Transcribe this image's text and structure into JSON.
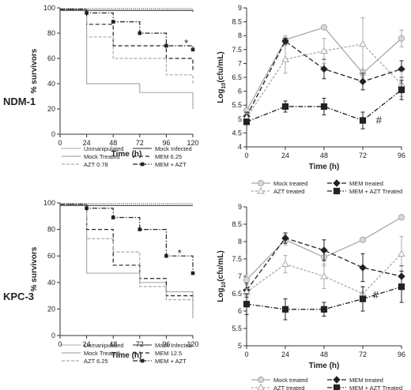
{
  "row_labels": [
    "NDM-1",
    "KPC-3"
  ],
  "chart_data": [
    {
      "type": "line",
      "panel": "NDM-1 survival",
      "xlabel": "Time (h)",
      "ylabel": "% survivors",
      "x_ticks": [
        0,
        24,
        48,
        72,
        96,
        120
      ],
      "y_ticks": [
        0,
        20,
        40,
        60,
        80,
        100
      ],
      "xlim": [
        0,
        120
      ],
      "ylim": [
        0,
        100
      ],
      "grid": false,
      "step": true,
      "legend_position": "below",
      "annotations": [
        {
          "text": "*",
          "x": 114,
          "y": 72
        }
      ],
      "series": [
        {
          "name": "Unmanipulated",
          "color": "#555555",
          "dash": "1,1.5",
          "width": 1.2,
          "x": [
            0,
            120
          ],
          "y": [
            99.5,
            99.5
          ]
        },
        {
          "name": "Mock Infected",
          "color": "#555555",
          "dash": "",
          "width": 1.3,
          "x": [
            0,
            24,
            120
          ],
          "y": [
            98,
            98,
            97
          ]
        },
        {
          "name": "Mock Treated",
          "color": "#aaaaaa",
          "dash": "",
          "width": 1.2,
          "x": [
            0,
            24,
            72,
            120
          ],
          "y": [
            99,
            40,
            33,
            20
          ]
        },
        {
          "name": "MEM 6.25",
          "color": "#222222",
          "dash": "5,3",
          "width": 1.2,
          "x": [
            0,
            24,
            48,
            96,
            120
          ],
          "y": [
            99,
            87,
            70,
            60,
            50
          ]
        },
        {
          "name": "AZT 0.78",
          "color": "#aaaaaa",
          "dash": "4,2",
          "width": 1.2,
          "x": [
            0,
            24,
            48,
            96,
            120
          ],
          "y": [
            99,
            77,
            60,
            47,
            40
          ]
        },
        {
          "name": "MEM + AZT",
          "color": "#222222",
          "dash": "6,2,1.5,2",
          "width": 1.2,
          "x": [
            0,
            24,
            48,
            72,
            96,
            120
          ],
          "y": [
            99,
            96,
            89,
            80,
            70,
            67
          ],
          "marker": "square"
        }
      ]
    },
    {
      "type": "line",
      "panel": "NDM-1 burden",
      "xlabel": "Time (h)",
      "ylabel": "Log10(cfu/mL)",
      "x_ticks": [
        0,
        24,
        48,
        72,
        96
      ],
      "y_ticks": [
        4,
        4.5,
        5,
        5.5,
        6,
        6.5,
        7,
        7.5,
        8,
        8.5,
        9
      ],
      "y_tick_labels": [
        "4",
        "4.5",
        "5",
        "5.5",
        "6",
        "6.5",
        "7",
        "7.5",
        "8",
        "8.5",
        "9"
      ],
      "xlim": [
        0,
        96
      ],
      "ylim": [
        4,
        9
      ],
      "grid": false,
      "legend_position": "below",
      "annotations": [
        {
          "text": "#",
          "x": 82,
          "y": 4.95
        }
      ],
      "x": [
        0,
        24,
        48,
        72,
        96
      ],
      "series": [
        {
          "name": "Mock treated",
          "color": "#a8a8a8",
          "dash": "",
          "marker": "circle",
          "fill": "#d8d8d8",
          "values": [
            5.3,
            7.85,
            8.3,
            6.65,
            7.9
          ],
          "err": [
            0.1,
            0.15,
            0,
            0.15,
            0.3
          ]
        },
        {
          "name": "MEM treated",
          "color": "#222222",
          "dash": "6,3",
          "marker": "diamond",
          "fill": "#222222",
          "values": [
            5.1,
            7.8,
            6.8,
            6.35,
            6.8
          ],
          "err": [
            0.15,
            0.1,
            0.35,
            0.3,
            0.3
          ]
        },
        {
          "name": "AZT treated",
          "color": "#a8a8a8",
          "dash": "3,2",
          "marker": "triangle",
          "fill": "#ffffff",
          "values": [
            5.05,
            7.15,
            7.45,
            7.7,
            6.25
          ],
          "err": [
            0.15,
            0.5,
            0.45,
            0.95,
            0.45
          ]
        },
        {
          "name": "MEM + AZT Treated",
          "color": "#222222",
          "dash": "6,2,1.5,2",
          "marker": "square",
          "fill": "#222222",
          "values": [
            4.9,
            5.45,
            5.45,
            4.95,
            6.05
          ],
          "err": [
            0.1,
            0.2,
            0.3,
            0.3,
            0.35
          ]
        }
      ]
    },
    {
      "type": "line",
      "panel": "KPC-3 survival",
      "xlabel": "Time (h)",
      "ylabel": "% survivors",
      "x_ticks": [
        0,
        24,
        48,
        72,
        96,
        120
      ],
      "y_ticks": [
        0,
        20,
        40,
        60,
        80,
        100
      ],
      "xlim": [
        0,
        120
      ],
      "ylim": [
        0,
        100
      ],
      "grid": false,
      "step": true,
      "legend_position": "below",
      "annotations": [
        {
          "text": "*",
          "x": 108,
          "y": 62
        }
      ],
      "series": [
        {
          "name": "Unmanipulated",
          "color": "#555555",
          "dash": "1,1.5",
          "width": 1.2,
          "x": [
            0,
            120
          ],
          "y": [
            99.5,
            99.5
          ]
        },
        {
          "name": "Mock Infected",
          "color": "#555555",
          "dash": "",
          "width": 1.3,
          "x": [
            0,
            24,
            120
          ],
          "y": [
            98,
            98,
            98
          ]
        },
        {
          "name": "Mock Treated",
          "color": "#aaaaaa",
          "dash": "",
          "width": 1.2,
          "x": [
            0,
            24,
            48,
            72,
            96,
            120
          ],
          "y": [
            99,
            47,
            47,
            40,
            33,
            13
          ]
        },
        {
          "name": "MEM 12.5",
          "color": "#222222",
          "dash": "5,3",
          "width": 1.2,
          "x": [
            0,
            24,
            48,
            72,
            96,
            120
          ],
          "y": [
            99,
            80,
            53,
            43,
            30,
            30
          ]
        },
        {
          "name": "AZT 6.25",
          "color": "#aaaaaa",
          "dash": "4,2",
          "width": 1.2,
          "x": [
            0,
            24,
            48,
            72,
            96,
            120
          ],
          "y": [
            99,
            73,
            63,
            37,
            27,
            20
          ]
        },
        {
          "name": "MEM + AZT",
          "color": "#222222",
          "dash": "6,2,1.5,2",
          "width": 1.2,
          "x": [
            0,
            24,
            48,
            72,
            96,
            120
          ],
          "y": [
            99,
            96,
            89,
            80,
            60,
            47
          ],
          "marker": "square"
        }
      ]
    },
    {
      "type": "line",
      "panel": "KPC-3 burden",
      "xlabel": "Time (h)",
      "ylabel": "Log10(cfu/mL)",
      "x_ticks": [
        0,
        24,
        48,
        72,
        96
      ],
      "y_ticks": [
        5,
        5.5,
        6,
        6.5,
        7,
        7.5,
        8,
        8.5,
        9
      ],
      "y_tick_labels": [
        "5",
        "5.5",
        "6",
        "6.5",
        "7",
        "7.5",
        "8",
        "8.5",
        "9"
      ],
      "xlim": [
        0,
        96
      ],
      "ylim": [
        5,
        9
      ],
      "grid": false,
      "legend_position": "below",
      "annotations": [
        {
          "text": "#",
          "x": 80,
          "y": 6.45
        }
      ],
      "x": [
        0,
        24,
        48,
        72,
        96
      ],
      "series": [
        {
          "name": "Mock treated",
          "color": "#a8a8a8",
          "dash": "",
          "marker": "circle",
          "fill": "#d8d8d8",
          "values": [
            6.9,
            8.05,
            7.55,
            8.05,
            8.7
          ],
          "err": [
            0.15,
            0.15,
            0.25,
            0,
            0
          ]
        },
        {
          "name": "MEM treated",
          "color": "#222222",
          "dash": "6,3",
          "marker": "diamond",
          "fill": "#222222",
          "values": [
            6.6,
            8.1,
            7.75,
            7.25,
            7.0
          ],
          "err": [
            0.2,
            0.15,
            0.3,
            0.4,
            0.3
          ]
        },
        {
          "name": "AZT treated",
          "color": "#a8a8a8",
          "dash": "3,2",
          "marker": "triangle",
          "fill": "#ffffff",
          "values": [
            6.55,
            7.35,
            7.0,
            6.5,
            7.65
          ],
          "err": [
            0.1,
            0.25,
            0.35,
            0.2,
            0.5
          ]
        },
        {
          "name": "MEM + AZT Treated",
          "color": "#222222",
          "dash": "6,2,1.5,2",
          "marker": "square",
          "fill": "#222222",
          "values": [
            6.2,
            6.05,
            6.05,
            6.35,
            6.7
          ],
          "err": [
            0.3,
            0.3,
            0.2,
            0.35,
            0.45
          ]
        }
      ]
    }
  ]
}
